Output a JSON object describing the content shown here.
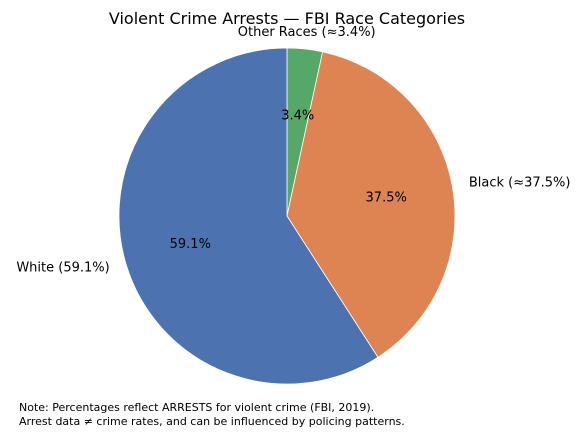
{
  "chart_data": {
    "type": "pie",
    "title": "Violent Crime Arrests — FBI Race Categories",
    "start_angle_deg": 90,
    "direction": "clockwise",
    "slices": [
      {
        "label": "Other Races (≈3.4%)",
        "value": 3.4,
        "pct_label": "3.4%",
        "color": "#55a868"
      },
      {
        "label": "Black (≈37.5%)",
        "value": 37.5,
        "pct_label": "37.5%",
        "color": "#dd8452"
      },
      {
        "label": "White (59.1%)",
        "value": 59.1,
        "pct_label": "59.1%",
        "color": "#4c72b0"
      }
    ]
  },
  "notes": {
    "line1": "Note: Percentages reflect ARRESTS for violent crime (FBI, 2019).",
    "line2": "Arrest data ≠ crime rates, and can be influenced by policing patterns."
  }
}
